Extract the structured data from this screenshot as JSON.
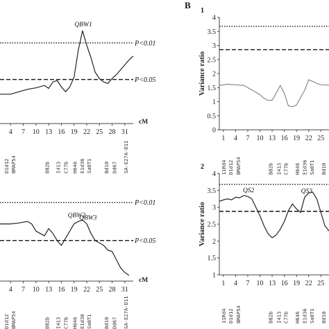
{
  "figure": {
    "panel_b_label": "B",
    "colors": {
      "curve": "#222222",
      "gray_curve": "#8a8a8a",
      "threshold": "#111111"
    }
  },
  "chart_data": [
    {
      "id": "A1",
      "type": "line",
      "title": "",
      "xlabel": "cM",
      "ylabel": "",
      "ylim": [
        2.0,
        4.3
      ],
      "x_ticks": [
        4,
        7,
        10,
        13,
        16,
        19,
        22,
        25,
        28,
        31
      ],
      "xlim": [
        1.5,
        33
      ],
      "thresholds": [
        {
          "label": "P<0.01",
          "value": 3.65,
          "style": "dotted"
        },
        {
          "label": "P<0.05",
          "value": 2.9,
          "style": "dashed"
        }
      ],
      "peak_labels": [
        {
          "text": "QBW1",
          "x": 21.2
        }
      ],
      "markers": [
        {
          "name": "D1d12",
          "x": 3
        },
        {
          "name": "BMAP54",
          "x": 4.6
        },
        {
          "name": "B82b",
          "x": 12.6
        },
        {
          "name": "I413",
          "x": 15.2
        },
        {
          "name": "C77b",
          "x": 17.0
        },
        {
          "name": "H646",
          "x": 19.1
        },
        {
          "name": "E1d36",
          "x": 20.9
        },
        {
          "name": "Sa0T1",
          "x": 22.5
        },
        {
          "name": "Bd10",
          "x": 26.6
        },
        {
          "name": "Dd67",
          "x": 28.5
        },
        {
          "name": "SA-E27A-D11",
          "x": 31.2
        }
      ],
      "series": [
        {
          "color": "#222222",
          "x": [
            1.5,
            4,
            6,
            8,
            10,
            12,
            13,
            14,
            15,
            16,
            17,
            18,
            19,
            20,
            21,
            22,
            23,
            24,
            25,
            26,
            27,
            28,
            29,
            30,
            31,
            32,
            33
          ],
          "y": [
            2.6,
            2.6,
            2.65,
            2.7,
            2.73,
            2.78,
            2.72,
            2.85,
            2.88,
            2.75,
            2.65,
            2.75,
            2.95,
            3.5,
            3.9,
            3.6,
            3.35,
            3.05,
            2.92,
            2.85,
            2.82,
            2.92,
            3.0,
            3.1,
            3.2,
            3.3,
            3.38
          ]
        }
      ]
    },
    {
      "id": "A2",
      "type": "line",
      "title": "",
      "xlabel": "cM",
      "ylabel": "",
      "ylim": [
        2.0,
        4.3
      ],
      "x_ticks": [
        4,
        7,
        10,
        13,
        16,
        19,
        22,
        25,
        28,
        31
      ],
      "xlim": [
        1.5,
        33
      ],
      "thresholds": [
        {
          "label": "P<0.01",
          "value": 3.65,
          "style": "dotted"
        },
        {
          "label": "P<0.05",
          "value": 2.85,
          "style": "dashed"
        }
      ],
      "peak_labels": [
        {
          "text": "QBW2",
          "x": 19.6
        },
        {
          "text": "QBW3",
          "x": 22.3
        }
      ],
      "markers": [
        {
          "name": "D1d12",
          "x": 3
        },
        {
          "name": "BMAP54",
          "x": 4.6
        },
        {
          "name": "B82b",
          "x": 12.6
        },
        {
          "name": "I413",
          "x": 15.2
        },
        {
          "name": "C77b",
          "x": 17.0
        },
        {
          "name": "H646",
          "x": 19.1
        },
        {
          "name": "E1d36",
          "x": 20.9
        },
        {
          "name": "Sa0T1",
          "x": 22.5
        },
        {
          "name": "Bd10",
          "x": 26.6
        },
        {
          "name": "Dd67",
          "x": 28.5
        },
        {
          "name": "SA-E27A-D11",
          "x": 31.2
        }
      ],
      "series": [
        {
          "color": "#222222",
          "x": [
            1.5,
            4,
            6,
            8,
            9,
            10,
            11,
            12,
            13,
            14,
            15,
            16,
            17,
            18,
            19,
            20,
            21,
            22,
            23,
            24,
            25,
            26,
            27,
            28,
            29,
            30,
            31,
            32
          ],
          "y": [
            3.2,
            3.2,
            3.22,
            3.25,
            3.2,
            3.05,
            3.0,
            2.95,
            3.1,
            3.0,
            2.85,
            2.75,
            2.9,
            3.05,
            3.2,
            3.25,
            3.28,
            3.2,
            3.0,
            2.85,
            2.8,
            2.75,
            2.65,
            2.62,
            2.45,
            2.28,
            2.18,
            2.12
          ]
        }
      ]
    },
    {
      "id": "B1",
      "panel_number": "1",
      "type": "line",
      "title": "",
      "xlabel": "",
      "ylabel": "Variance ratio",
      "ylim": [
        0,
        4
      ],
      "y_ticks": [
        0,
        0.5,
        1,
        1.5,
        2,
        2.5,
        3,
        3.5,
        4
      ],
      "x_ticks": [
        1,
        4,
        7,
        10,
        13,
        16,
        19,
        22,
        25
      ],
      "xlim": [
        0,
        27
      ],
      "thresholds": [
        {
          "label": "",
          "value": 3.68,
          "style": "dotted"
        },
        {
          "label": "",
          "value": 2.85,
          "style": "dashed"
        }
      ],
      "markers": [
        {
          "name": "11Rd4",
          "x": 1
        },
        {
          "name": "D1d12",
          "x": 2.7
        },
        {
          "name": "BMAP54",
          "x": 4.6
        },
        {
          "name": "B82b",
          "x": 12.6
        },
        {
          "name": "I413",
          "x": 14.6
        },
        {
          "name": "C77b",
          "x": 16.3
        },
        {
          "name": "H646",
          "x": 19.1
        },
        {
          "name": "E1d36",
          "x": 20.9
        },
        {
          "name": "Sa0T1",
          "x": 22.7
        },
        {
          "name": "Bd10",
          "x": 25.6
        }
      ],
      "series": [
        {
          "color": "#8a8a8a",
          "x": [
            0,
            2,
            4,
            6,
            8,
            10,
            11,
            12,
            13,
            14,
            15,
            16,
            17,
            18,
            19,
            20,
            21,
            22,
            23,
            24,
            25,
            26,
            27
          ],
          "y": [
            1.58,
            1.62,
            1.6,
            1.58,
            1.42,
            1.25,
            1.12,
            1.05,
            1.05,
            1.3,
            1.58,
            1.3,
            0.85,
            0.82,
            0.88,
            1.15,
            1.4,
            1.78,
            1.72,
            1.65,
            1.6,
            1.6,
            1.58
          ]
        }
      ]
    },
    {
      "id": "B2",
      "panel_number": "2",
      "type": "line",
      "title": "",
      "xlabel": "",
      "ylabel": "Variance ratio",
      "ylim": [
        1,
        4
      ],
      "y_ticks": [
        1,
        1.5,
        2,
        2.5,
        3,
        3.5,
        4
      ],
      "x_ticks": [
        1,
        4,
        7,
        10,
        13,
        16,
        19,
        22,
        25
      ],
      "xlim": [
        0,
        27
      ],
      "thresholds": [
        {
          "label": "",
          "value": 3.68,
          "style": "dotted"
        },
        {
          "label": "",
          "value": 2.88,
          "style": "dashed"
        }
      ],
      "peak_labels": [
        {
          "text": "QS2",
          "x": 7.2
        },
        {
          "text": "QS3",
          "x": 21.5
        }
      ],
      "markers": [
        {
          "name": "11Rd4",
          "x": 1
        },
        {
          "name": "D1d12",
          "x": 2.7
        },
        {
          "name": "BMAP54",
          "x": 4.6
        },
        {
          "name": "B82b",
          "x": 12.6
        },
        {
          "name": "I413",
          "x": 14.6
        },
        {
          "name": "C77b",
          "x": 16.3
        },
        {
          "name": "H646",
          "x": 19.1
        },
        {
          "name": "E1d36",
          "x": 20.9
        },
        {
          "name": "Sa0T1",
          "x": 22.7
        },
        {
          "name": "Bd10",
          "x": 25.6
        }
      ],
      "series": [
        {
          "color": "#222222",
          "x": [
            0,
            1,
            2,
            3,
            4,
            5,
            6,
            7,
            8,
            9,
            10,
            11,
            12,
            13,
            14,
            15,
            16,
            17,
            18,
            19,
            20,
            21,
            22,
            23,
            24,
            25,
            26,
            27
          ],
          "y": [
            3.18,
            3.22,
            3.25,
            3.22,
            3.3,
            3.28,
            3.35,
            3.32,
            3.25,
            3.0,
            2.75,
            2.45,
            2.22,
            2.1,
            2.18,
            2.35,
            2.58,
            2.9,
            3.1,
            2.95,
            2.85,
            3.3,
            3.42,
            3.45,
            3.25,
            2.85,
            2.45,
            2.3
          ]
        }
      ]
    }
  ]
}
